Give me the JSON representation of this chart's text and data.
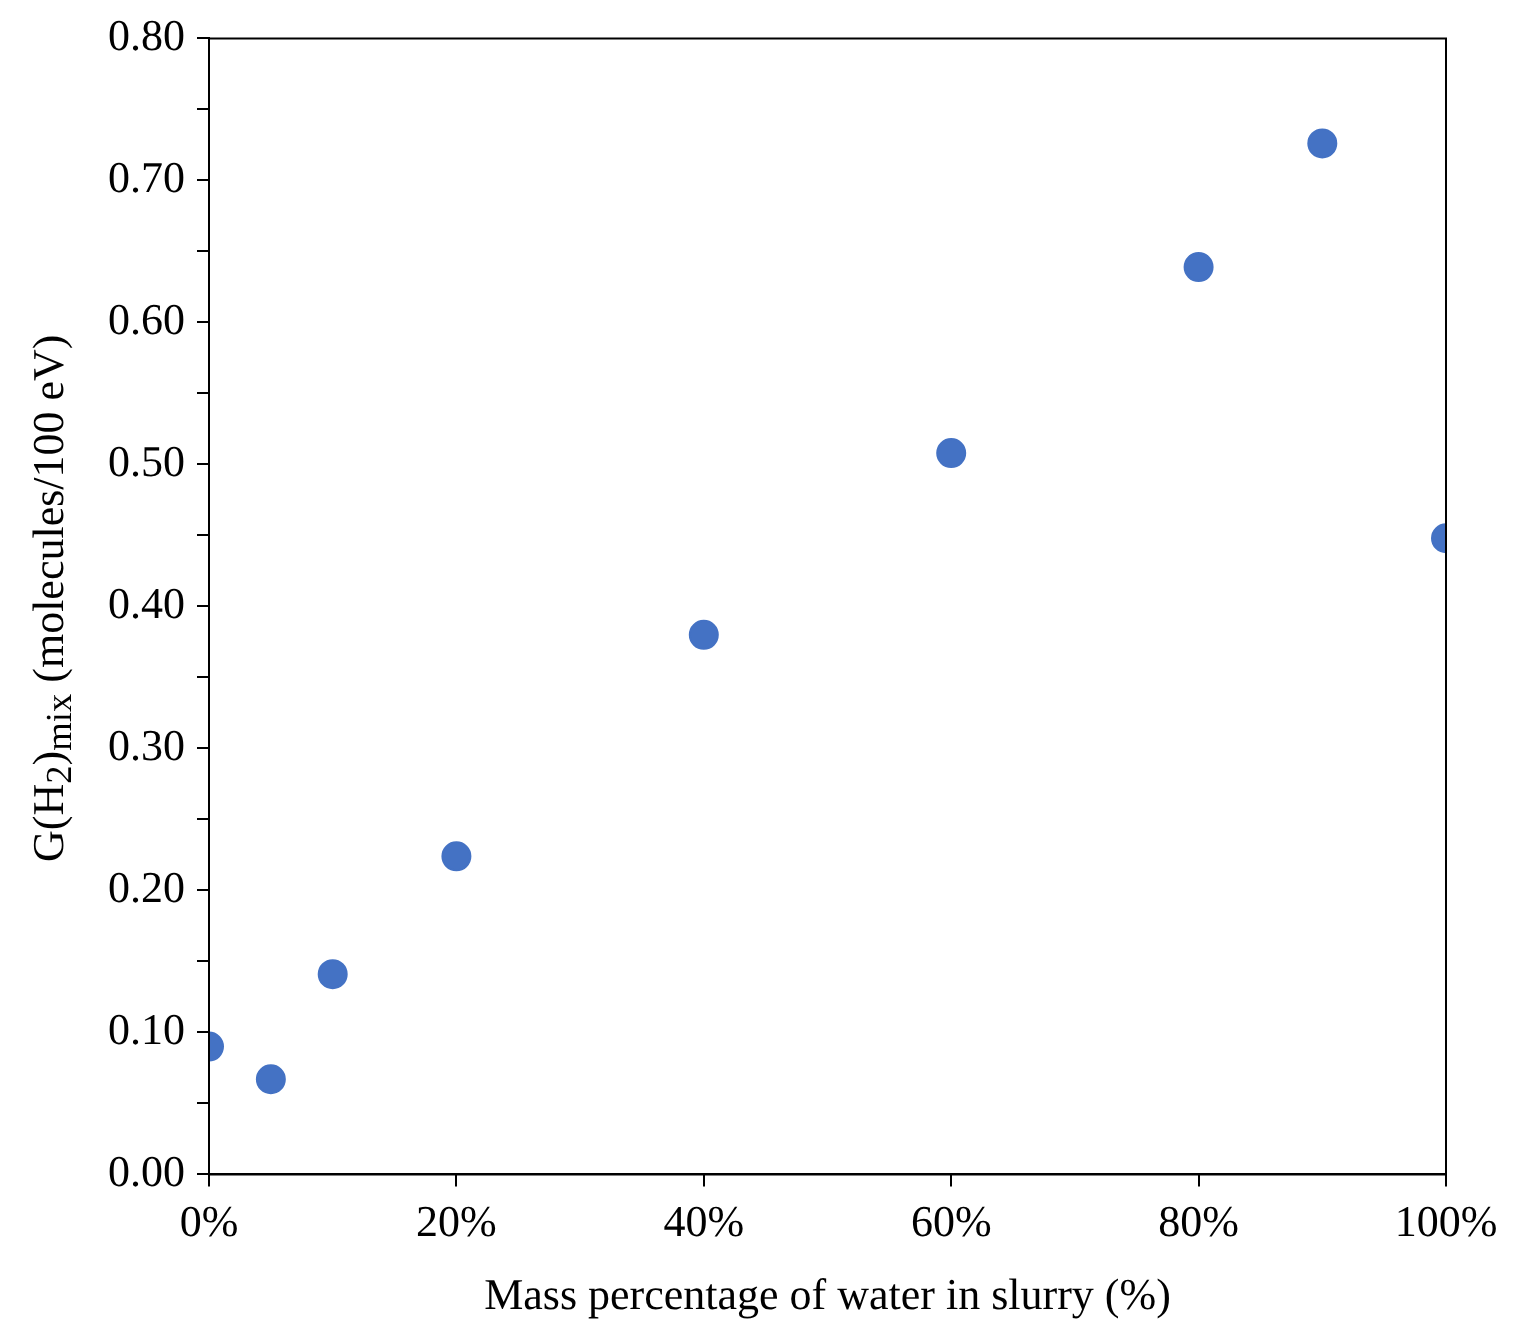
{
  "chart_data": {
    "type": "scatter",
    "xlabel": "Mass percentage of water in slurry (%)",
    "ylabel": "G(H$_{2}$)$_{mix}$ (molecules/100 eV)",
    "x": [
      0,
      5,
      10,
      20,
      40,
      60,
      80,
      90,
      100
    ],
    "series": [
      {
        "color": "#4472c4",
        "values": [
          0.09,
          0.067,
          0.141,
          0.224,
          0.38,
          0.508,
          0.639,
          0.726,
          0.448
        ]
      }
    ],
    "xlim": [
      0,
      100
    ],
    "xticks": [
      {
        "value": 0,
        "label": "0%"
      },
      {
        "value": 20,
        "label": "20%"
      },
      {
        "value": 40,
        "label": "40%"
      },
      {
        "value": 60,
        "label": "60%"
      },
      {
        "value": 80,
        "label": "80%"
      },
      {
        "value": 100,
        "label": "100%"
      }
    ],
    "ylim": [
      0,
      0.8
    ],
    "yticks": [
      {
        "value": 0,
        "label": "0.00"
      },
      {
        "value": 0.05,
        "label": null
      },
      {
        "value": 0.1,
        "label": "0.10"
      },
      {
        "value": 0.15,
        "label": null
      },
      {
        "value": 0.2,
        "label": "0.20"
      },
      {
        "value": 0.25,
        "label": null
      },
      {
        "value": 0.3,
        "label": "0.30"
      },
      {
        "value": 0.35,
        "label": null
      },
      {
        "value": 0.4,
        "label": "0.40"
      },
      {
        "value": 0.45,
        "label": null
      },
      {
        "value": 0.5,
        "label": "0.50"
      },
      {
        "value": 0.55,
        "label": null
      },
      {
        "value": 0.6,
        "label": "0.60"
      },
      {
        "value": 0.65,
        "label": null
      },
      {
        "value": 0.7,
        "label": "0.70"
      },
      {
        "value": 0.75,
        "label": null
      },
      {
        "value": 0.8,
        "label": "0.80"
      }
    ],
    "grid": false,
    "legend": false,
    "marker": "circle"
  }
}
